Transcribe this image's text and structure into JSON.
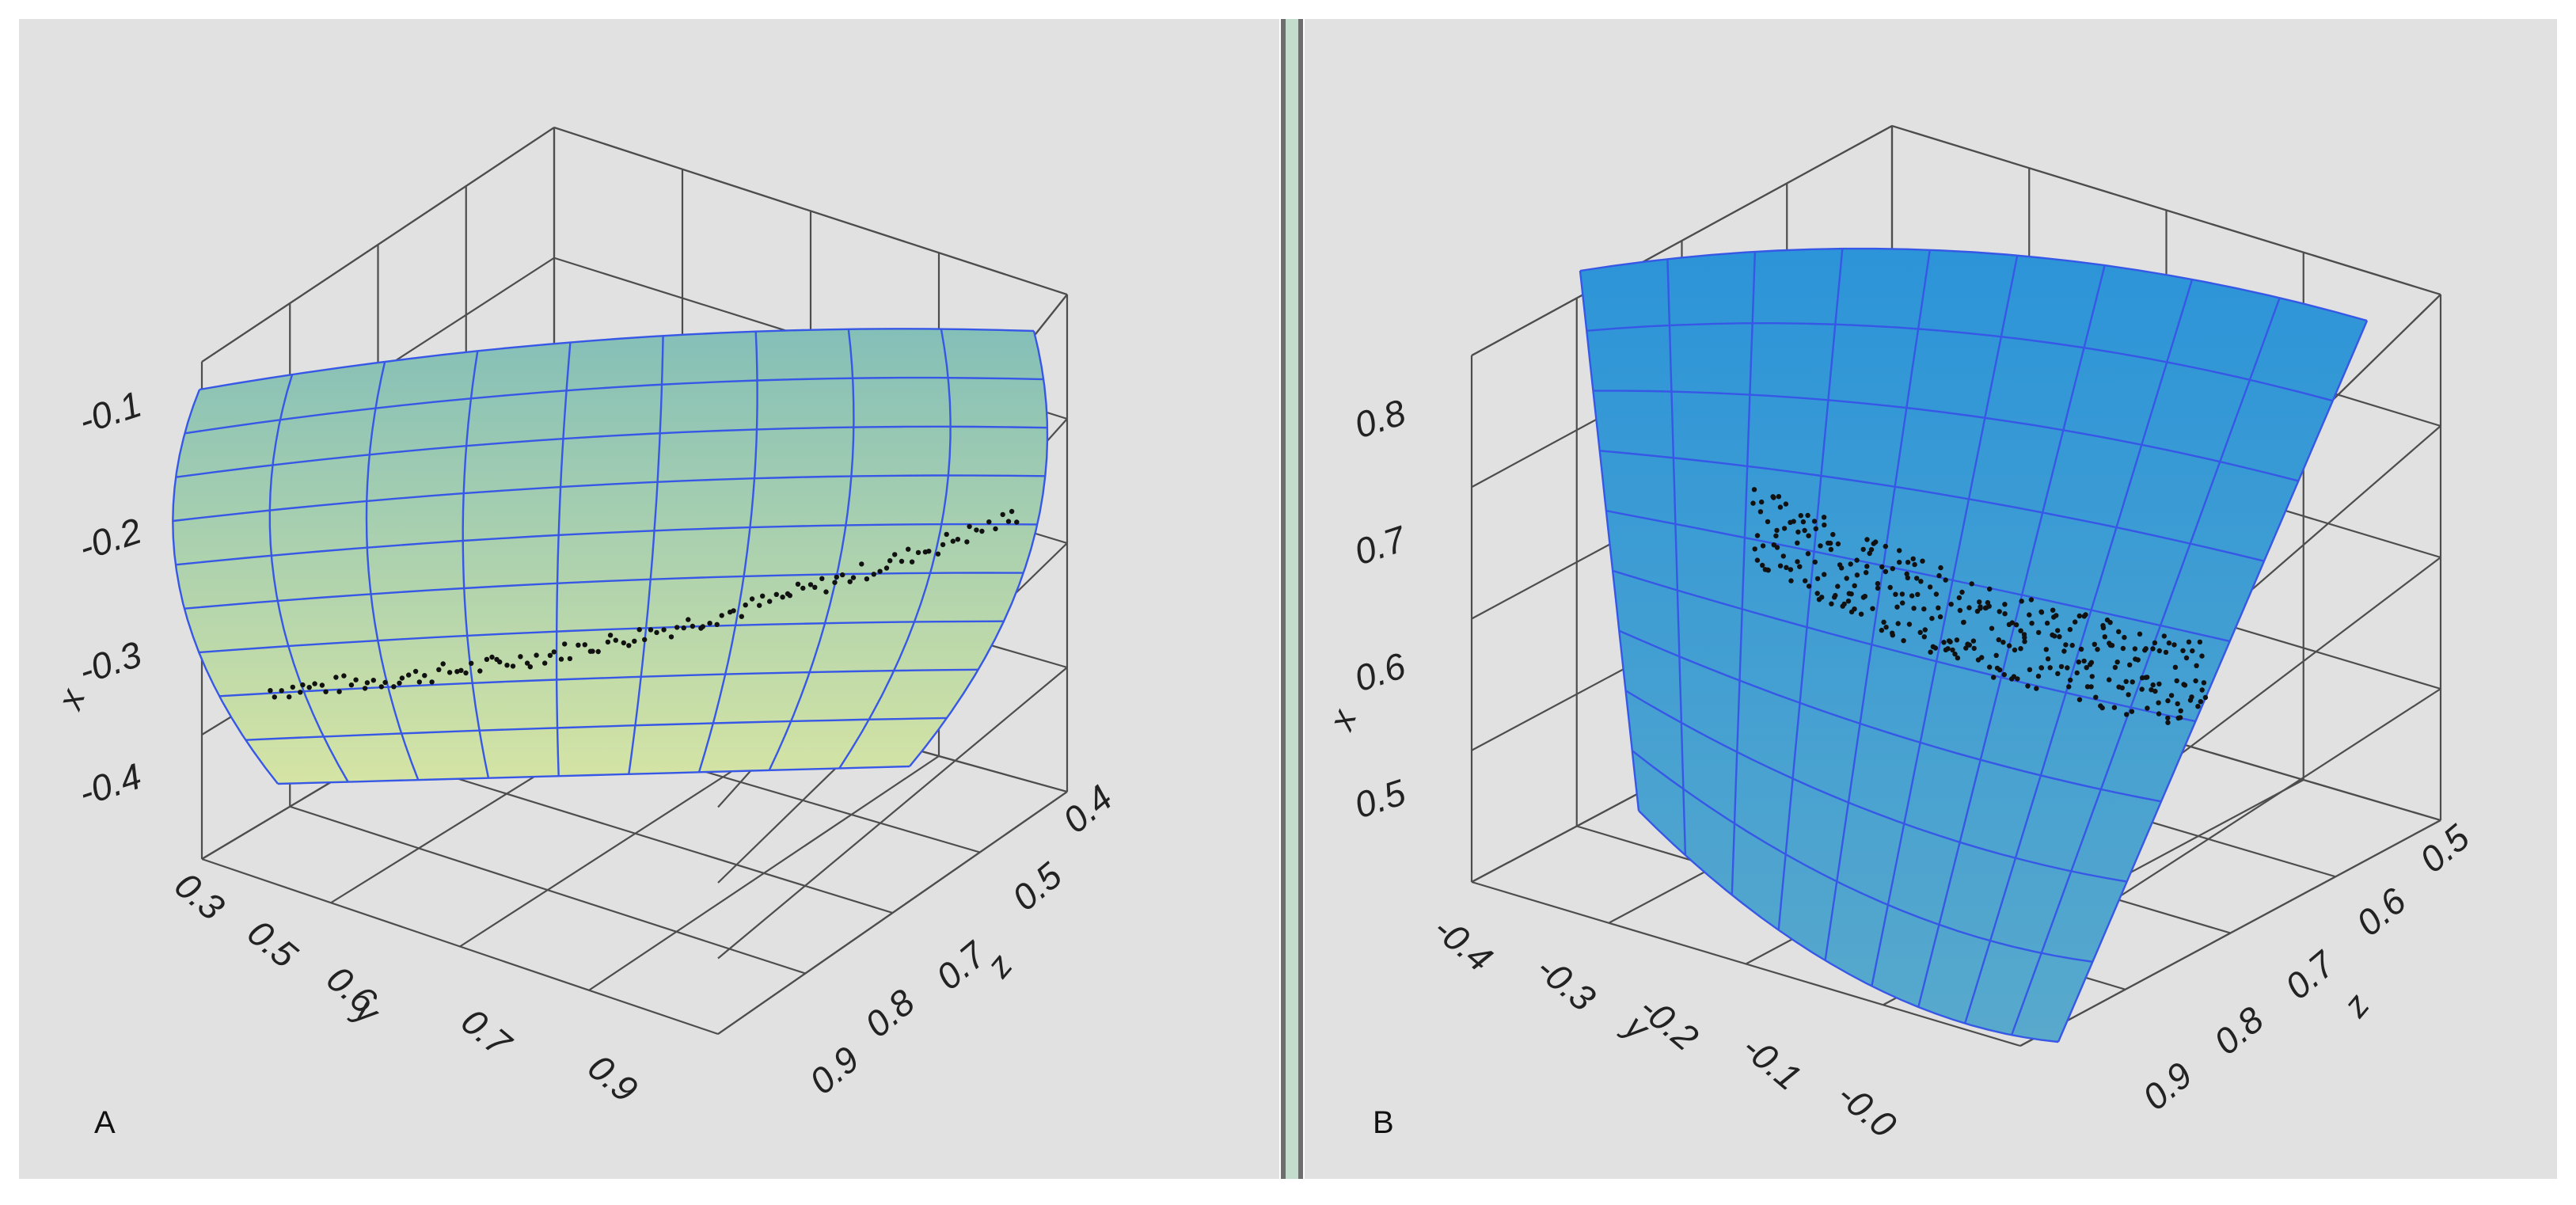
{
  "panels": [
    {
      "label": "A"
    },
    {
      "label": "B"
    }
  ],
  "chart_data": [
    {
      "type": "surface3d",
      "panel": "A",
      "surface_color": {
        "top": "#84bfb8",
        "bottom": "#d5e4a4",
        "grid": "#3757e6"
      },
      "point_color": "#111111",
      "axes": {
        "x": {
          "label": "x",
          "ticks": [
            "-0.1",
            "-0.2",
            "-0.3",
            "-0.4"
          ],
          "range": [
            -0.45,
            -0.05
          ]
        },
        "y": {
          "label": "y",
          "ticks": [
            "0.3",
            "0.5",
            "0.6",
            "0.7",
            "0.9"
          ],
          "range": [
            0.3,
            0.9
          ]
        },
        "z": {
          "label": "z",
          "ticks": [
            "0.4",
            "0.5",
            "0.7",
            "0.8",
            "0.9"
          ],
          "range": [
            0.4,
            0.9
          ]
        }
      },
      "points_trend": {
        "count": 130,
        "x_start": -0.33,
        "x_end": -0.225,
        "y_range": [
          0.35,
          0.88
        ],
        "noise": 0.004
      }
    },
    {
      "type": "surface3d",
      "panel": "B",
      "surface_color": {
        "top": "#2c94d8",
        "bottom": "#58a9cc",
        "grid": "#3757e6"
      },
      "point_color": "#111111",
      "axes": {
        "x": {
          "label": "x",
          "ticks": [
            "0.8",
            "0.7",
            "0.6",
            "0.5"
          ],
          "range": [
            0.45,
            0.85
          ]
        },
        "y": {
          "label": "y",
          "ticks": [
            "-0.4",
            "-0.3",
            "-0.2",
            "-0.1",
            "-0.0"
          ],
          "range": [
            -0.4,
            0.0
          ]
        },
        "z": {
          "label": "z",
          "ticks": [
            "0.5",
            "0.6",
            "0.7",
            "0.8",
            "0.9"
          ],
          "range": [
            0.5,
            0.9
          ]
        }
      },
      "points_trend": {
        "count": 320,
        "x_start": 0.695,
        "x_end": 0.615,
        "y_range": [
          -0.33,
          -0.03
        ],
        "noise": 0.02
      }
    }
  ]
}
